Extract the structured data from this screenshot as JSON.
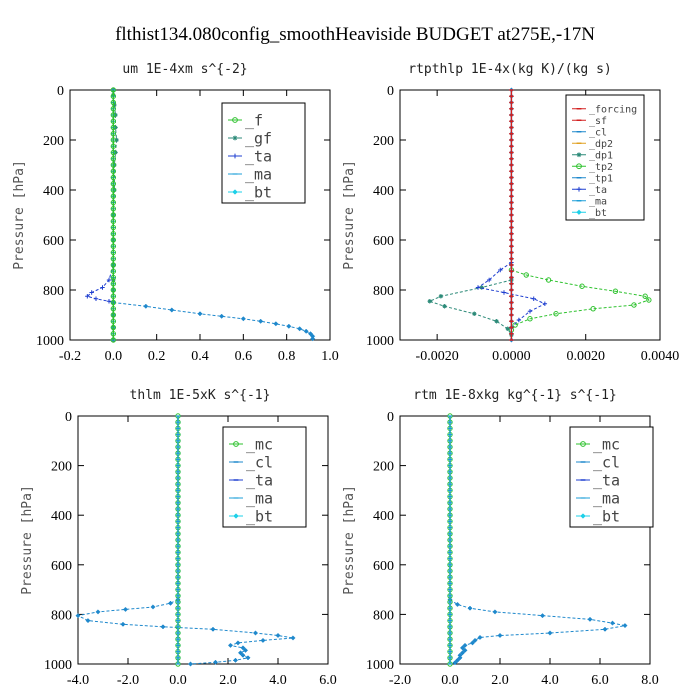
{
  "figure_title": "flthist134.080config_smoothHeaviside  BUDGET at275E,-17N",
  "chart_data": [
    {
      "type": "line",
      "title": "um  1E-4xm s^{-2}",
      "ylabel": "Pressure [hPa]",
      "xlabel": "",
      "xlim": [
        -0.2,
        1.0
      ],
      "ylim": [
        1000,
        0
      ],
      "y_inverted": true,
      "xticks": [
        "-0.2",
        "0.0",
        "0.2",
        "0.4",
        "0.6",
        "0.8",
        "1.0"
      ],
      "yticks": [
        "0",
        "200",
        "400",
        "600",
        "800",
        "1000"
      ],
      "legend": {
        "position": "top-right",
        "entries": [
          "_f",
          "_gf",
          "_ta",
          "_ma",
          "_bt"
        ],
        "size": "large"
      },
      "series": [
        {
          "name": "_gf",
          "color": "#2c8a78",
          "marker": "star",
          "points": [
            [
              0,
              0
            ],
            [
              0,
              20
            ],
            [
              0.005,
              60
            ],
            [
              0.01,
              100
            ],
            [
              0.01,
              150
            ],
            [
              0.015,
              200
            ],
            [
              0.01,
              250
            ],
            [
              0.005,
              300
            ],
            [
              0.005,
              400
            ],
            [
              0,
              500
            ],
            [
              0,
              600
            ],
            [
              0,
              700
            ],
            [
              0,
              760
            ],
            [
              0,
              800
            ],
            [
              0,
              850
            ],
            [
              0,
              900
            ],
            [
              0,
              950
            ],
            [
              0,
              1000
            ]
          ]
        },
        {
          "name": "_ta",
          "color": "#1f3fd0",
          "marker": "plus",
          "points": [
            [
              0,
              700
            ],
            [
              -0.02,
              760
            ],
            [
              -0.05,
              790
            ],
            [
              -0.1,
              810
            ],
            [
              -0.12,
              825
            ],
            [
              -0.08,
              835
            ],
            [
              -0.02,
              845
            ],
            [
              0,
              850
            ]
          ]
        },
        {
          "name": "_ma",
          "color": "#1e9fd8",
          "marker": "dash",
          "points": [
            [
              0,
              0
            ],
            [
              0,
              1000
            ]
          ]
        },
        {
          "name": "_bt",
          "color": "#1e88cc",
          "marker": "diamond",
          "points": [
            [
              0,
              850
            ],
            [
              0.15,
              865
            ],
            [
              0.27,
              880
            ],
            [
              0.4,
              895
            ],
            [
              0.5,
              905
            ],
            [
              0.6,
              915
            ],
            [
              0.68,
              925
            ],
            [
              0.75,
              935
            ],
            [
              0.81,
              945
            ],
            [
              0.86,
              955
            ],
            [
              0.89,
              965
            ],
            [
              0.91,
              975
            ],
            [
              0.92,
              985
            ],
            [
              0.92,
              995
            ]
          ]
        },
        {
          "name": "_f",
          "color": "#2ec22e",
          "marker": "circle",
          "points": [
            [
              0,
              0
            ],
            [
              0,
              1000
            ]
          ]
        }
      ]
    },
    {
      "type": "line",
      "title": "rtpthlp  1E-4x(kg K)/(kg s)",
      "ylabel": "Pressure [hPa]",
      "xlabel": "",
      "xlim": [
        -0.003,
        0.004
      ],
      "ylim": [
        1000,
        0
      ],
      "y_inverted": true,
      "xticks": [
        "-0.0020",
        "0.0000",
        "0.0020",
        "0.0040"
      ],
      "yticks": [
        "0",
        "200",
        "400",
        "600",
        "800",
        "1000"
      ],
      "legend": {
        "position": "top-right",
        "entries": [
          "_forcing",
          "_sf",
          "_cl",
          "_dp2",
          "_dp1",
          "_tp2",
          "_tp1",
          "_ta",
          "_ma",
          "_bt"
        ],
        "size": "small"
      },
      "series": [
        {
          "name": "_tp2",
          "color": "#2ec22e",
          "marker": "circle",
          "points": [
            [
              0,
              720
            ],
            [
              0.0004,
              740
            ],
            [
              0.001,
              760
            ],
            [
              0.0019,
              785
            ],
            [
              0.0028,
              805
            ],
            [
              0.0036,
              825
            ],
            [
              0.0037,
              840
            ],
            [
              0.0033,
              860
            ],
            [
              0.0022,
              875
            ],
            [
              0.0012,
              895
            ],
            [
              0.0005,
              915
            ],
            [
              0.0001,
              940
            ],
            [
              0,
              960
            ]
          ]
        },
        {
          "name": "_dp1",
          "color": "#2c8a78",
          "marker": "star",
          "points": [
            [
              0,
              760
            ],
            [
              -0.0008,
              790
            ],
            [
              -0.0019,
              825
            ],
            [
              -0.0022,
              845
            ],
            [
              -0.0018,
              865
            ],
            [
              -0.001,
              895
            ],
            [
              -0.0004,
              925
            ],
            [
              -0.0001,
              955
            ],
            [
              0,
              980
            ]
          ]
        },
        {
          "name": "_ta",
          "color": "#1f3fd0",
          "marker": "plus",
          "points": [
            [
              0,
              690
            ],
            [
              -0.0003,
              720
            ],
            [
              -0.0006,
              760
            ],
            [
              -0.0009,
              790
            ],
            [
              -0.0002,
              810
            ],
            [
              0.0006,
              835
            ],
            [
              0.0009,
              855
            ],
            [
              0.0005,
              885
            ],
            [
              0.0002,
              920
            ],
            [
              0,
              950
            ]
          ]
        },
        {
          "name": "_bt",
          "color": "#1e88cc",
          "marker": "diamond",
          "points": [
            [
              0,
              0
            ],
            [
              0,
              1000
            ]
          ]
        },
        {
          "name": "_forcing",
          "color": "#d22020",
          "marker": "line",
          "points": [
            [
              0,
              0
            ],
            [
              0,
              1000
            ]
          ]
        }
      ]
    },
    {
      "type": "line",
      "title": "thlm  1E-5xK s^{-1}",
      "ylabel": "Pressure [hPa]",
      "xlabel": "",
      "xlim": [
        -4.0,
        6.0
      ],
      "ylim": [
        1000,
        0
      ],
      "y_inverted": true,
      "xticks": [
        "-4.0",
        "-2.0",
        "0.0",
        "2.0",
        "4.0",
        "6.0"
      ],
      "yticks": [
        "0",
        "200",
        "400",
        "600",
        "800",
        "1000"
      ],
      "legend": {
        "position": "top-right",
        "entries": [
          "_mc",
          "_cl",
          "_ta",
          "_ma",
          "_bt"
        ],
        "size": "large"
      },
      "series": [
        {
          "name": "_bt",
          "color": "#1e88cc",
          "marker": "diamond",
          "points": [
            [
              0,
              740
            ],
            [
              -0.3,
              755
            ],
            [
              -1.0,
              770
            ],
            [
              -2.1,
              780
            ],
            [
              -3.2,
              790
            ],
            [
              -4.0,
              805
            ],
            [
              -3.6,
              825
            ],
            [
              -2.2,
              840
            ],
            [
              -0.6,
              850
            ],
            [
              1.4,
              860
            ],
            [
              3.1,
              875
            ],
            [
              4.0,
              885
            ],
            [
              4.6,
              895
            ],
            [
              3.4,
              905
            ],
            [
              2.4,
              915
            ],
            [
              2.1,
              925
            ],
            [
              2.6,
              935
            ],
            [
              2.7,
              945
            ],
            [
              2.5,
              955
            ],
            [
              2.6,
              965
            ],
            [
              2.8,
              975
            ],
            [
              2.3,
              985
            ],
            [
              1.5,
              993
            ],
            [
              0.5,
              1000
            ]
          ]
        },
        {
          "name": "_mc",
          "color": "#2ec22e",
          "marker": "circle",
          "points": [
            [
              0,
              0
            ],
            [
              0,
              1000
            ]
          ]
        },
        {
          "name": "_ma",
          "color": "#1e9fd8",
          "marker": "dash",
          "points": [
            [
              0,
              0
            ],
            [
              0,
              1000
            ]
          ]
        }
      ]
    },
    {
      "type": "line",
      "title": "rtm  1E-8xkg kg^{-1} s^{-1}",
      "ylabel": "Pressure [hPa]",
      "xlabel": "",
      "xlim": [
        -2.0,
        8.0
      ],
      "ylim": [
        1000,
        0
      ],
      "y_inverted": true,
      "xticks": [
        "-2.0",
        "0.0",
        "2.0",
        "4.0",
        "6.0",
        "8.0"
      ],
      "yticks": [
        "0",
        "200",
        "400",
        "600",
        "800",
        "1000"
      ],
      "legend": {
        "position": "top-right",
        "entries": [
          "_mc",
          "_cl",
          "_ta",
          "_ma",
          "_bt"
        ],
        "size": "large"
      },
      "series": [
        {
          "name": "_bt",
          "color": "#1e88cc",
          "marker": "diamond",
          "points": [
            [
              0,
              740
            ],
            [
              0.3,
              760
            ],
            [
              0.8,
              775
            ],
            [
              1.8,
              790
            ],
            [
              3.7,
              805
            ],
            [
              5.6,
              820
            ],
            [
              6.5,
              835
            ],
            [
              7.0,
              845
            ],
            [
              6.2,
              860
            ],
            [
              4.0,
              875
            ],
            [
              2.0,
              885
            ],
            [
              1.2,
              893
            ],
            [
              1.0,
              905
            ],
            [
              0.9,
              915
            ],
            [
              0.6,
              925
            ],
            [
              0.5,
              935
            ],
            [
              0.6,
              945
            ],
            [
              0.5,
              955
            ],
            [
              0.4,
              965
            ],
            [
              0.4,
              975
            ],
            [
              0.3,
              985
            ],
            [
              0.2,
              995
            ]
          ]
        },
        {
          "name": "_mc",
          "color": "#2ec22e",
          "marker": "circle",
          "points": [
            [
              0,
              0
            ],
            [
              0,
              1000
            ]
          ]
        },
        {
          "name": "_ma",
          "color": "#1e9fd8",
          "marker": "dash",
          "points": [
            [
              0,
              0
            ],
            [
              0,
              1000
            ]
          ]
        }
      ]
    }
  ]
}
